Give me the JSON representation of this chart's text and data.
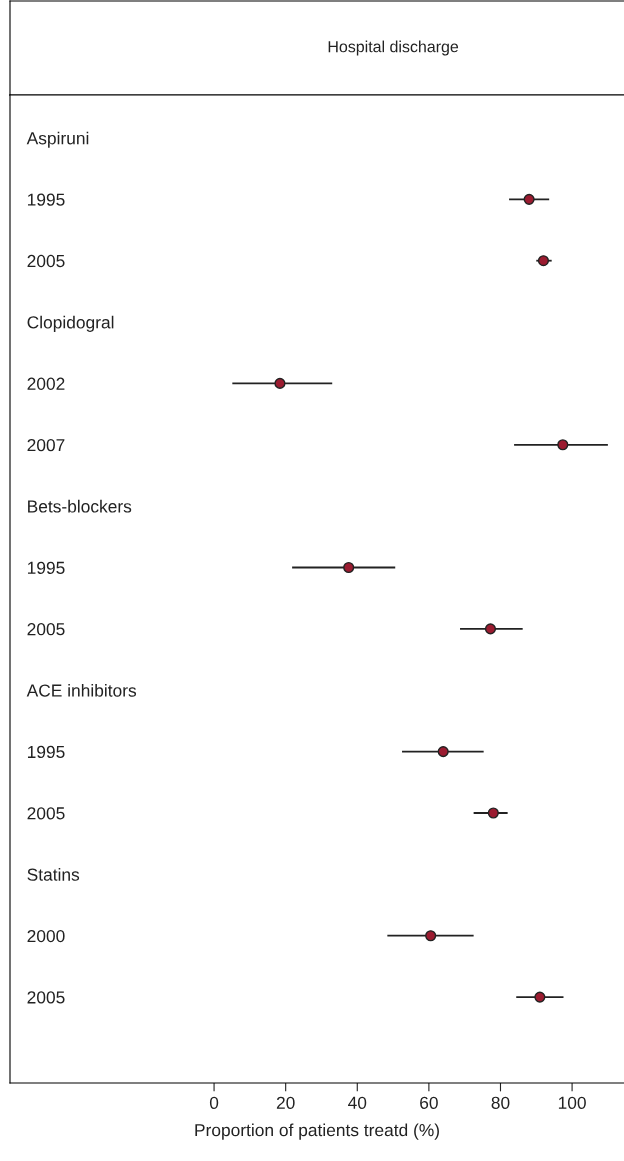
{
  "chart_data": {
    "type": "scatter",
    "orientation": "horizontal",
    "title": "Hospital discharge",
    "xlabel": "Proportion of patients treatd (%)",
    "categories": [
      "Aspiruni",
      "1995",
      "2005",
      "Clopidogral",
      "2002",
      "2007",
      "Bets-blockers",
      "1995",
      "2005",
      "ACE inhibitors",
      "1995",
      "2005",
      "Statins",
      "2000",
      "2005"
    ],
    "color": "#9b1b30",
    "values": [
      null,
      88,
      92,
      null,
      18.4,
      97.4,
      null,
      37.6,
      77.2,
      null,
      64,
      78,
      null,
      60.5,
      91
    ],
    "errors": [
      null,
      [
        82.4,
        93.6
      ],
      [
        90,
        94.3
      ],
      null,
      [
        5.1,
        33
      ],
      [
        83.8,
        110
      ],
      null,
      [
        21.8,
        50.6
      ],
      [
        68.7,
        86.2
      ],
      null,
      [
        52.5,
        75.3
      ],
      [
        72.5,
        82
      ],
      null,
      [
        48.4,
        72.5
      ],
      [
        84.4,
        97.6
      ]
    ],
    "xlim": [
      -57,
      114.5
    ],
    "xticks": [
      0,
      20,
      40,
      60,
      80,
      100
    ],
    "marker": "circle",
    "grid": false
  }
}
